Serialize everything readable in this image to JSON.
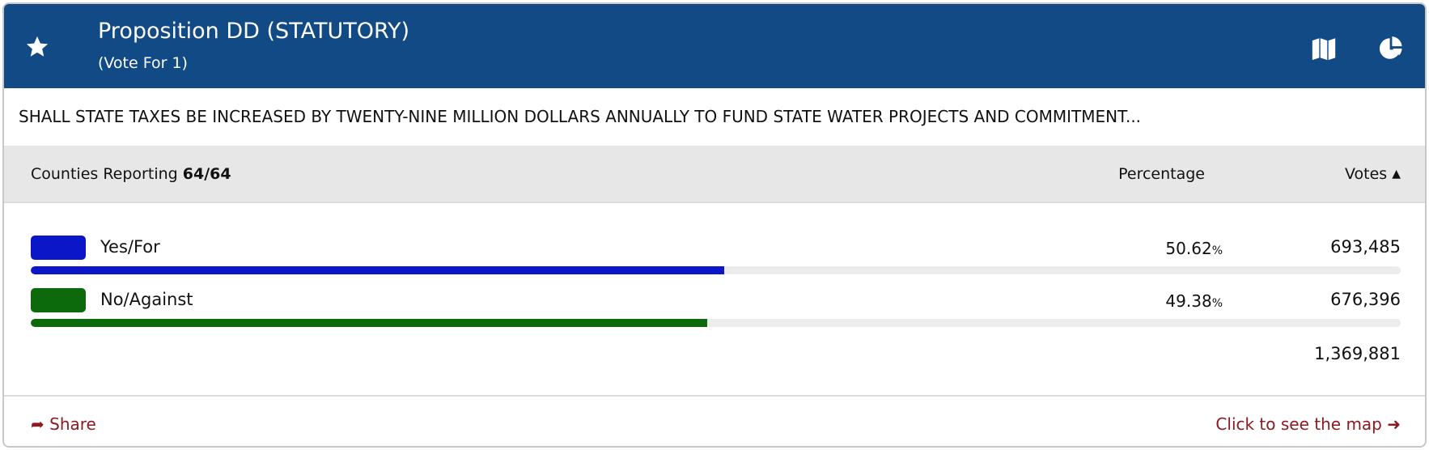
{
  "header": {
    "title": "Proposition DD (STATUTORY)",
    "subtitle": "(Vote For 1)",
    "color": "#124a85"
  },
  "description": "SHALL STATE TAXES BE INCREASED BY TWENTY-NINE MILLION DOLLARS ANNUALLY TO FUND STATE WATER PROJECTS AND COMMITMENT...",
  "columns": {
    "reporting_label": "Counties Reporting",
    "reporting_value": "64/64",
    "percentage": "Percentage",
    "votes": "Votes"
  },
  "results": [
    {
      "label": "Yes/For",
      "percent": "50.62",
      "percent_sign": "%",
      "votes": "693,485",
      "color": "#0b16c9",
      "bar_fraction": 0.5062
    },
    {
      "label": "No/Against",
      "percent": "49.38",
      "percent_sign": "%",
      "votes": "676,396",
      "color": "#0c6a0c",
      "bar_fraction": 0.4938
    }
  ],
  "total": "1,369,881",
  "footer": {
    "share": "Share",
    "map_link": "Click to see the map",
    "link_color": "#8b1a22"
  }
}
